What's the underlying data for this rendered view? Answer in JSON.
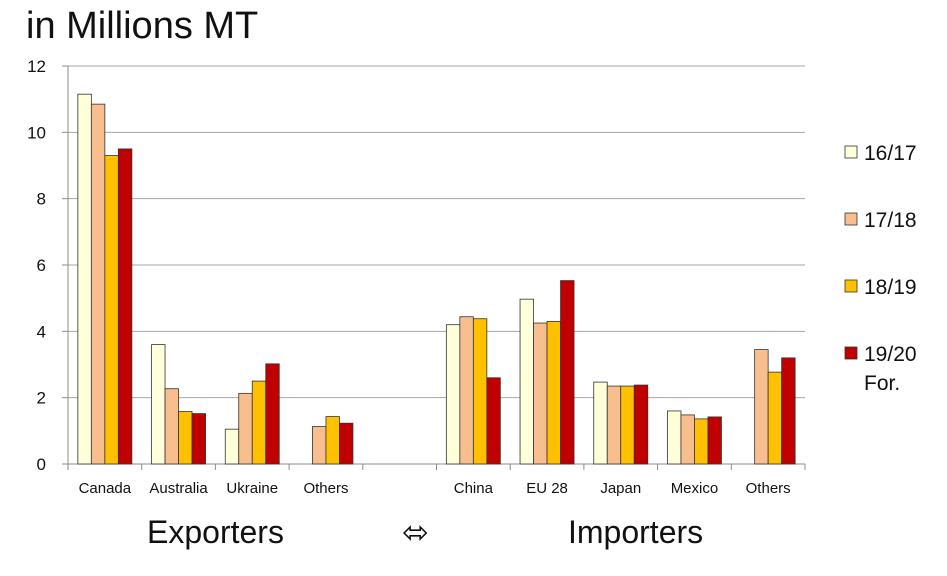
{
  "chart_data": {
    "type": "bar",
    "title": "in Millions MT",
    "categories": [
      "Canada",
      "Australia",
      "Ukraine",
      "Others",
      "",
      "China",
      "EU 28",
      "Japan",
      "Mexico",
      "Others"
    ],
    "series": [
      {
        "name": "16/17",
        "color": "#FFFFD9",
        "values": [
          11.15,
          3.6,
          1.05,
          null,
          null,
          4.2,
          4.97,
          2.47,
          1.6,
          null
        ]
      },
      {
        "name": "17/18",
        "color": "#F8BE8E",
        "values": [
          10.85,
          2.27,
          2.13,
          1.13,
          null,
          4.44,
          4.25,
          2.35,
          1.48,
          3.45
        ]
      },
      {
        "name": "18/19",
        "color": "#FFC000",
        "values": [
          9.3,
          1.58,
          2.5,
          1.43,
          null,
          4.38,
          4.3,
          2.35,
          1.36,
          2.77
        ]
      },
      {
        "name": "19/20 For.",
        "color": "#C00000",
        "values": [
          9.5,
          1.52,
          3.02,
          1.23,
          null,
          2.6,
          5.53,
          2.38,
          1.42,
          3.2
        ]
      }
    ],
    "ylim": [
      0,
      12
    ],
    "yticks": [
      0,
      2,
      4,
      6,
      8,
      10,
      12
    ],
    "xlabel": "",
    "ylabel": "",
    "grid": true,
    "legend_position": "right",
    "groups": [
      {
        "label": "Exporters"
      },
      {
        "label": "Importers"
      }
    ],
    "group_separator_icon": "double-arrow-icon",
    "group_separator_glyph": "⬄"
  }
}
